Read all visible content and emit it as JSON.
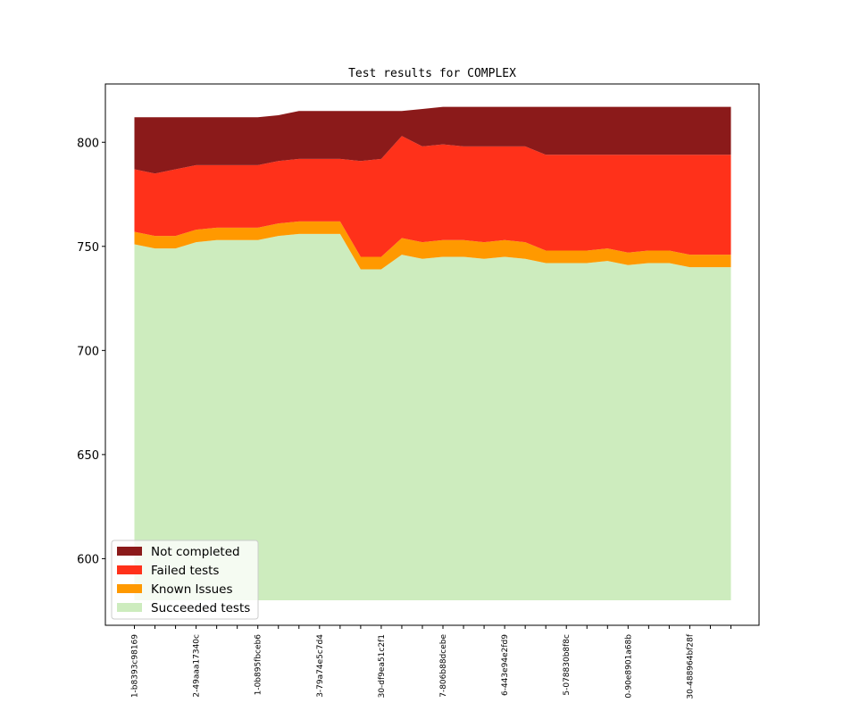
{
  "chart_data": {
    "type": "area",
    "title": "Test results for COMPLEX",
    "xlabel": "",
    "ylabel": "",
    "ylim": [
      568,
      828
    ],
    "yticks": [
      600,
      650,
      700,
      750,
      800
    ],
    "baseline": 580,
    "x_tick_labels": [
      "1-b8393c98169",
      "2-49aaa17340c",
      "1-0b895fbceb6",
      "3-79a74e5c7d4",
      "30-df9ea51c2f1",
      "7-806b88dcebe",
      "6-443e94e2fd9",
      "5-078830b8f8c",
      "0-90e8901a68b",
      "30-488964bf28f"
    ],
    "x_tick_label_every": 3,
    "num_points": 30,
    "series": [
      {
        "name": "Succeeded tests",
        "color": "#cdecbe",
        "values": [
          751,
          749,
          749,
          752,
          753,
          753,
          753,
          755,
          756,
          756,
          756,
          739,
          739,
          746,
          744,
          745,
          745,
          744,
          745,
          744,
          742,
          742,
          742,
          743,
          741,
          742,
          742,
          740,
          740,
          740
        ]
      },
      {
        "name": "Known Issues",
        "color": "#ff9900",
        "values": [
          757,
          755,
          755,
          758,
          759,
          759,
          759,
          761,
          762,
          762,
          762,
          745,
          745,
          754,
          752,
          753,
          753,
          752,
          753,
          752,
          748,
          748,
          748,
          749,
          747,
          748,
          748,
          746,
          746,
          746
        ]
      },
      {
        "name": "Failed tests",
        "color": "#ff311a",
        "values": [
          787,
          785,
          787,
          789,
          789,
          789,
          789,
          791,
          792,
          792,
          792,
          791,
          792,
          803,
          798,
          799,
          798,
          798,
          798,
          798,
          794,
          794,
          794,
          794,
          794,
          794,
          794,
          794,
          794,
          794
        ]
      },
      {
        "name": "Not completed",
        "color": "#8b1a1a",
        "values": [
          812,
          812,
          812,
          812,
          812,
          812,
          812,
          813,
          815,
          815,
          815,
          815,
          815,
          815,
          816,
          817,
          817,
          817,
          817,
          817,
          817,
          817,
          817,
          817,
          817,
          817,
          817,
          817,
          817,
          817
        ]
      }
    ],
    "legend": {
      "position": "lower-left",
      "entries": [
        "Not completed",
        "Failed tests",
        "Known Issues",
        "Succeeded tests"
      ]
    },
    "grid": false
  }
}
